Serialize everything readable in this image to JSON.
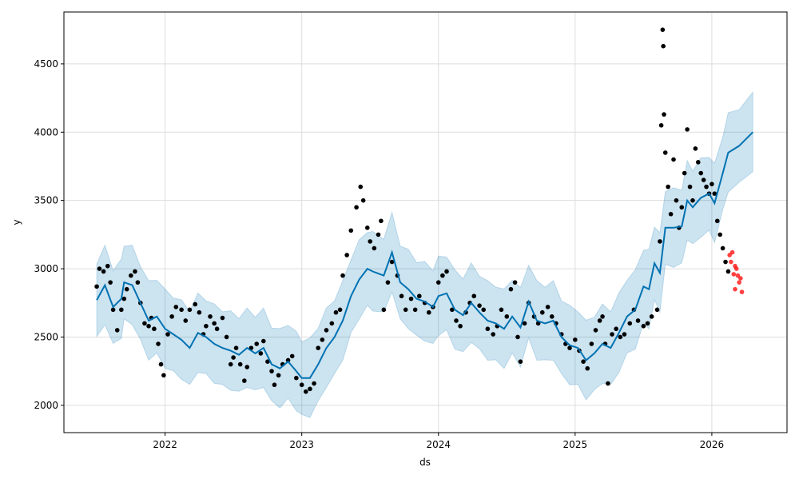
{
  "chart_data": {
    "type": "scatter",
    "title": "",
    "xlabel": "ds",
    "ylabel": "y",
    "xlim": [
      2021.26,
      2026.55
    ],
    "ylim": [
      1800,
      4880
    ],
    "xticks": [
      2022,
      2023,
      2024,
      2025,
      2026
    ],
    "xtick_labels": [
      "2022",
      "2023",
      "2024",
      "2025",
      "2026"
    ],
    "yticks": [
      2000,
      2500,
      3000,
      3500,
      4000,
      4500
    ],
    "ytick_labels": [
      "2000",
      "2500",
      "3000",
      "3500",
      "4000",
      "4500"
    ],
    "grid": true,
    "colors": {
      "actual": "#000000",
      "test": "#ff0000",
      "forecast": "#0072B2",
      "interval": "#0072B2"
    },
    "interval_half_width": 275,
    "forecast": [
      [
        2021.5,
        2770
      ],
      [
        2021.56,
        2880
      ],
      [
        2021.62,
        2720
      ],
      [
        2021.68,
        2780
      ],
      [
        2021.7,
        2900
      ],
      [
        2021.76,
        2880
      ],
      [
        2021.82,
        2750
      ],
      [
        2021.88,
        2620
      ],
      [
        2021.94,
        2650
      ],
      [
        2022.0,
        2560
      ],
      [
        2022.06,
        2520
      ],
      [
        2022.12,
        2480
      ],
      [
        2022.18,
        2420
      ],
      [
        2022.24,
        2530
      ],
      [
        2022.3,
        2500
      ],
      [
        2022.36,
        2450
      ],
      [
        2022.42,
        2420
      ],
      [
        2022.48,
        2400
      ],
      [
        2022.54,
        2370
      ],
      [
        2022.6,
        2420
      ],
      [
        2022.66,
        2380
      ],
      [
        2022.72,
        2420
      ],
      [
        2022.78,
        2300
      ],
      [
        2022.84,
        2270
      ],
      [
        2022.9,
        2320
      ],
      [
        2022.96,
        2250
      ],
      [
        2023.0,
        2200
      ],
      [
        2023.06,
        2200
      ],
      [
        2023.12,
        2300
      ],
      [
        2023.18,
        2420
      ],
      [
        2023.24,
        2500
      ],
      [
        2023.3,
        2620
      ],
      [
        2023.36,
        2800
      ],
      [
        2023.42,
        2920
      ],
      [
        2023.48,
        3000
      ],
      [
        2023.52,
        2980
      ],
      [
        2023.6,
        2950
      ],
      [
        2023.66,
        3120
      ],
      [
        2023.72,
        2900
      ],
      [
        2023.78,
        2850
      ],
      [
        2023.84,
        2780
      ],
      [
        2023.9,
        2760
      ],
      [
        2023.96,
        2720
      ],
      [
        2024.0,
        2800
      ],
      [
        2024.06,
        2820
      ],
      [
        2024.12,
        2700
      ],
      [
        2024.18,
        2660
      ],
      [
        2024.24,
        2750
      ],
      [
        2024.3,
        2680
      ],
      [
        2024.36,
        2620
      ],
      [
        2024.42,
        2600
      ],
      [
        2024.48,
        2560
      ],
      [
        2024.54,
        2650
      ],
      [
        2024.6,
        2570
      ],
      [
        2024.66,
        2760
      ],
      [
        2024.72,
        2620
      ],
      [
        2024.78,
        2600
      ],
      [
        2024.84,
        2620
      ],
      [
        2024.9,
        2500
      ],
      [
        2024.96,
        2440
      ],
      [
        2025.02,
        2420
      ],
      [
        2025.08,
        2330
      ],
      [
        2025.14,
        2380
      ],
      [
        2025.2,
        2450
      ],
      [
        2025.26,
        2420
      ],
      [
        2025.32,
        2530
      ],
      [
        2025.38,
        2650
      ],
      [
        2025.44,
        2700
      ],
      [
        2025.5,
        2870
      ],
      [
        2025.54,
        2850
      ],
      [
        2025.58,
        3040
      ],
      [
        2025.62,
        2970
      ],
      [
        2025.66,
        3300
      ],
      [
        2025.72,
        3300
      ],
      [
        2025.78,
        3310
      ],
      [
        2025.82,
        3500
      ],
      [
        2025.86,
        3450
      ],
      [
        2025.92,
        3520
      ],
      [
        2025.98,
        3550
      ],
      [
        2026.02,
        3480
      ],
      [
        2026.08,
        3700
      ],
      [
        2026.12,
        3850
      ],
      [
        2026.2,
        3900
      ],
      [
        2026.3,
        4000
      ]
    ],
    "actual": [
      [
        2021.5,
        2870
      ],
      [
        2021.52,
        3000
      ],
      [
        2021.55,
        2980
      ],
      [
        2021.58,
        3020
      ],
      [
        2021.6,
        2900
      ],
      [
        2021.62,
        2700
      ],
      [
        2021.65,
        2550
      ],
      [
        2021.68,
        2700
      ],
      [
        2021.7,
        2780
      ],
      [
        2021.72,
        2850
      ],
      [
        2021.75,
        2950
      ],
      [
        2021.78,
        2980
      ],
      [
        2021.8,
        2900
      ],
      [
        2021.82,
        2750
      ],
      [
        2021.85,
        2600
      ],
      [
        2021.88,
        2580
      ],
      [
        2021.9,
        2640
      ],
      [
        2021.92,
        2560
      ],
      [
        2021.95,
        2450
      ],
      [
        2021.97,
        2300
      ],
      [
        2021.99,
        2220
      ],
      [
        2022.02,
        2520
      ],
      [
        2022.05,
        2650
      ],
      [
        2022.08,
        2720
      ],
      [
        2022.12,
        2700
      ],
      [
        2022.15,
        2620
      ],
      [
        2022.18,
        2700
      ],
      [
        2022.22,
        2740
      ],
      [
        2022.25,
        2680
      ],
      [
        2022.28,
        2520
      ],
      [
        2022.3,
        2580
      ],
      [
        2022.33,
        2650
      ],
      [
        2022.36,
        2600
      ],
      [
        2022.38,
        2560
      ],
      [
        2022.42,
        2640
      ],
      [
        2022.45,
        2500
      ],
      [
        2022.48,
        2300
      ],
      [
        2022.5,
        2350
      ],
      [
        2022.52,
        2420
      ],
      [
        2022.55,
        2300
      ],
      [
        2022.58,
        2180
      ],
      [
        2022.6,
        2280
      ],
      [
        2022.63,
        2420
      ],
      [
        2022.67,
        2450
      ],
      [
        2022.7,
        2380
      ],
      [
        2022.72,
        2470
      ],
      [
        2022.75,
        2320
      ],
      [
        2022.78,
        2250
      ],
      [
        2022.8,
        2150
      ],
      [
        2022.83,
        2220
      ],
      [
        2022.86,
        2300
      ],
      [
        2022.9,
        2330
      ],
      [
        2022.93,
        2360
      ],
      [
        2022.96,
        2200
      ],
      [
        2023.0,
        2150
      ],
      [
        2023.03,
        2100
      ],
      [
        2023.06,
        2120
      ],
      [
        2023.09,
        2160
      ],
      [
        2023.12,
        2420
      ],
      [
        2023.15,
        2480
      ],
      [
        2023.18,
        2550
      ],
      [
        2023.22,
        2600
      ],
      [
        2023.25,
        2680
      ],
      [
        2023.28,
        2700
      ],
      [
        2023.3,
        2950
      ],
      [
        2023.33,
        3100
      ],
      [
        2023.36,
        3280
      ],
      [
        2023.4,
        3450
      ],
      [
        2023.43,
        3600
      ],
      [
        2023.45,
        3500
      ],
      [
        2023.48,
        3300
      ],
      [
        2023.5,
        3200
      ],
      [
        2023.53,
        3150
      ],
      [
        2023.56,
        3250
      ],
      [
        2023.58,
        3350
      ],
      [
        2023.6,
        2700
      ],
      [
        2023.63,
        2900
      ],
      [
        2023.66,
        3050
      ],
      [
        2023.7,
        2950
      ],
      [
        2023.73,
        2800
      ],
      [
        2023.76,
        2700
      ],
      [
        2023.8,
        2780
      ],
      [
        2023.83,
        2700
      ],
      [
        2023.86,
        2800
      ],
      [
        2023.9,
        2750
      ],
      [
        2023.93,
        2680
      ],
      [
        2023.96,
        2720
      ],
      [
        2024.0,
        2900
      ],
      [
        2024.03,
        2950
      ],
      [
        2024.06,
        2980
      ],
      [
        2024.1,
        2700
      ],
      [
        2024.13,
        2620
      ],
      [
        2024.16,
        2580
      ],
      [
        2024.2,
        2680
      ],
      [
        2024.23,
        2750
      ],
      [
        2024.26,
        2800
      ],
      [
        2024.3,
        2730
      ],
      [
        2024.33,
        2700
      ],
      [
        2024.36,
        2560
      ],
      [
        2024.4,
        2520
      ],
      [
        2024.43,
        2580
      ],
      [
        2024.46,
        2700
      ],
      [
        2024.5,
        2650
      ],
      [
        2024.53,
        2850
      ],
      [
        2024.56,
        2900
      ],
      [
        2024.58,
        2500
      ],
      [
        2024.6,
        2320
      ],
      [
        2024.63,
        2600
      ],
      [
        2024.66,
        2750
      ],
      [
        2024.7,
        2650
      ],
      [
        2024.73,
        2600
      ],
      [
        2024.76,
        2680
      ],
      [
        2024.8,
        2720
      ],
      [
        2024.83,
        2650
      ],
      [
        2024.86,
        2600
      ],
      [
        2024.9,
        2520
      ],
      [
        2024.93,
        2450
      ],
      [
        2024.96,
        2420
      ],
      [
        2025.0,
        2480
      ],
      [
        2025.03,
        2400
      ],
      [
        2025.06,
        2320
      ],
      [
        2025.09,
        2270
      ],
      [
        2025.12,
        2450
      ],
      [
        2025.15,
        2550
      ],
      [
        2025.18,
        2620
      ],
      [
        2025.2,
        2650
      ],
      [
        2025.22,
        2450
      ],
      [
        2025.24,
        2160
      ],
      [
        2025.27,
        2520
      ],
      [
        2025.3,
        2560
      ],
      [
        2025.33,
        2500
      ],
      [
        2025.36,
        2520
      ],
      [
        2025.4,
        2600
      ],
      [
        2025.43,
        2700
      ],
      [
        2025.46,
        2620
      ],
      [
        2025.5,
        2580
      ],
      [
        2025.53,
        2600
      ],
      [
        2025.56,
        2650
      ],
      [
        2025.6,
        2700
      ],
      [
        2025.62,
        3200
      ],
      [
        2025.63,
        4050
      ],
      [
        2025.64,
        4750
      ],
      [
        2025.645,
        4630
      ],
      [
        2025.65,
        4130
      ],
      [
        2025.66,
        3850
      ],
      [
        2025.68,
        3600
      ],
      [
        2025.7,
        3400
      ],
      [
        2025.72,
        3800
      ],
      [
        2025.74,
        3500
      ],
      [
        2025.76,
        3300
      ],
      [
        2025.78,
        3450
      ],
      [
        2025.8,
        3700
      ],
      [
        2025.82,
        4020
      ],
      [
        2025.84,
        3600
      ],
      [
        2025.86,
        3500
      ],
      [
        2025.88,
        3880
      ],
      [
        2025.9,
        3780
      ],
      [
        2025.92,
        3700
      ],
      [
        2025.94,
        3650
      ],
      [
        2025.96,
        3600
      ],
      [
        2025.98,
        3550
      ],
      [
        2026.0,
        3620
      ],
      [
        2026.02,
        3550
      ],
      [
        2026.04,
        3350
      ],
      [
        2026.06,
        3250
      ],
      [
        2026.08,
        3150
      ],
      [
        2026.1,
        3050
      ],
      [
        2026.12,
        2980
      ]
    ],
    "test": [
      [
        2026.13,
        3100
      ],
      [
        2026.14,
        3050
      ],
      [
        2026.15,
        3120
      ],
      [
        2026.16,
        2960
      ],
      [
        2026.17,
        3020
      ],
      [
        2026.18,
        3000
      ],
      [
        2026.19,
        2950
      ],
      [
        2026.2,
        2900
      ],
      [
        2026.21,
        2930
      ],
      [
        2026.17,
        2850
      ],
      [
        2026.22,
        2830
      ]
    ]
  }
}
